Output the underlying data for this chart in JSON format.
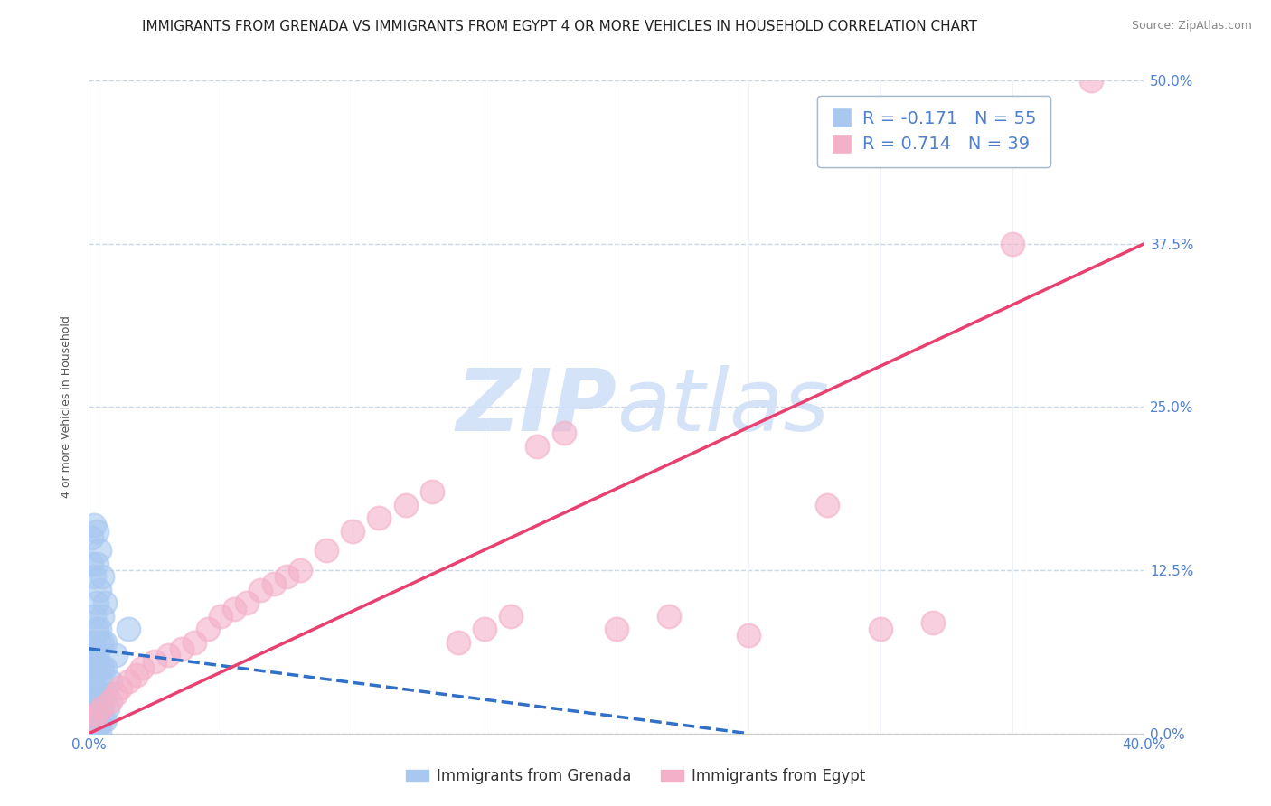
{
  "title": "IMMIGRANTS FROM GRENADA VS IMMIGRANTS FROM EGYPT 4 OR MORE VEHICLES IN HOUSEHOLD CORRELATION CHART",
  "source": "Source: ZipAtlas.com",
  "ylabel": "4 or more Vehicles in Household",
  "xlim": [
    0.0,
    0.4
  ],
  "ylim": [
    0.0,
    0.5
  ],
  "xticks": [
    0.0,
    0.05,
    0.1,
    0.15,
    0.2,
    0.25,
    0.3,
    0.35,
    0.4
  ],
  "yticks": [
    0.0,
    0.125,
    0.25,
    0.375,
    0.5
  ],
  "ytick_labels": [
    "0.0%",
    "12.5%",
    "25.0%",
    "37.5%",
    "50.0%"
  ],
  "grenada_R": -0.171,
  "grenada_N": 55,
  "egypt_R": 0.714,
  "egypt_N": 39,
  "grenada_color": "#a8c8f0",
  "egypt_color": "#f4b0c8",
  "grenada_line_color": "#3070c8",
  "egypt_line_color": "#e84070",
  "watermark_color": "#d0e0f8",
  "background_color": "#ffffff",
  "grid_color": "#c8d8e8",
  "legend_label_grenada": "Immigrants from Grenada",
  "legend_label_egypt": "Immigrants from Egypt",
  "title_fontsize": 11,
  "axis_label_fontsize": 9,
  "tick_fontsize": 11,
  "tick_color": "#5080d0",
  "grenada_x": [
    0.001,
    0.001,
    0.001,
    0.001,
    0.001,
    0.001,
    0.001,
    0.001,
    0.001,
    0.001,
    0.002,
    0.002,
    0.002,
    0.002,
    0.002,
    0.002,
    0.002,
    0.002,
    0.002,
    0.002,
    0.003,
    0.003,
    0.003,
    0.003,
    0.003,
    0.003,
    0.003,
    0.003,
    0.003,
    0.003,
    0.004,
    0.004,
    0.004,
    0.004,
    0.004,
    0.004,
    0.004,
    0.004,
    0.004,
    0.005,
    0.005,
    0.005,
    0.005,
    0.005,
    0.005,
    0.005,
    0.006,
    0.006,
    0.006,
    0.006,
    0.006,
    0.007,
    0.008,
    0.01,
    0.015
  ],
  "grenada_y": [
    0.0,
    0.01,
    0.02,
    0.03,
    0.04,
    0.05,
    0.06,
    0.07,
    0.13,
    0.15,
    0.0,
    0.01,
    0.02,
    0.03,
    0.04,
    0.05,
    0.07,
    0.09,
    0.12,
    0.16,
    0.0,
    0.01,
    0.02,
    0.03,
    0.05,
    0.06,
    0.08,
    0.1,
    0.13,
    0.155,
    0.0,
    0.01,
    0.02,
    0.04,
    0.05,
    0.07,
    0.08,
    0.11,
    0.14,
    0.01,
    0.02,
    0.03,
    0.05,
    0.07,
    0.09,
    0.12,
    0.01,
    0.03,
    0.05,
    0.07,
    0.1,
    0.02,
    0.04,
    0.06,
    0.08
  ],
  "egypt_x": [
    0.001,
    0.003,
    0.005,
    0.008,
    0.01,
    0.012,
    0.015,
    0.018,
    0.02,
    0.025,
    0.03,
    0.035,
    0.04,
    0.045,
    0.05,
    0.055,
    0.06,
    0.065,
    0.07,
    0.075,
    0.08,
    0.09,
    0.1,
    0.11,
    0.12,
    0.13,
    0.14,
    0.15,
    0.16,
    0.17,
    0.18,
    0.2,
    0.22,
    0.25,
    0.28,
    0.3,
    0.32,
    0.35,
    0.38
  ],
  "egypt_y": [
    0.01,
    0.015,
    0.02,
    0.025,
    0.03,
    0.035,
    0.04,
    0.045,
    0.05,
    0.055,
    0.06,
    0.065,
    0.07,
    0.08,
    0.09,
    0.095,
    0.1,
    0.11,
    0.115,
    0.12,
    0.125,
    0.14,
    0.155,
    0.165,
    0.175,
    0.185,
    0.07,
    0.08,
    0.09,
    0.22,
    0.23,
    0.08,
    0.09,
    0.075,
    0.175,
    0.08,
    0.085,
    0.375,
    0.5
  ],
  "grenada_line_x": [
    0.0,
    0.25
  ],
  "egypt_line_x": [
    0.0,
    0.4
  ],
  "grenada_trend_start_y": 0.065,
  "grenada_trend_end_y": 0.0,
  "egypt_trend_start_y": 0.0,
  "egypt_trend_end_y": 0.375
}
